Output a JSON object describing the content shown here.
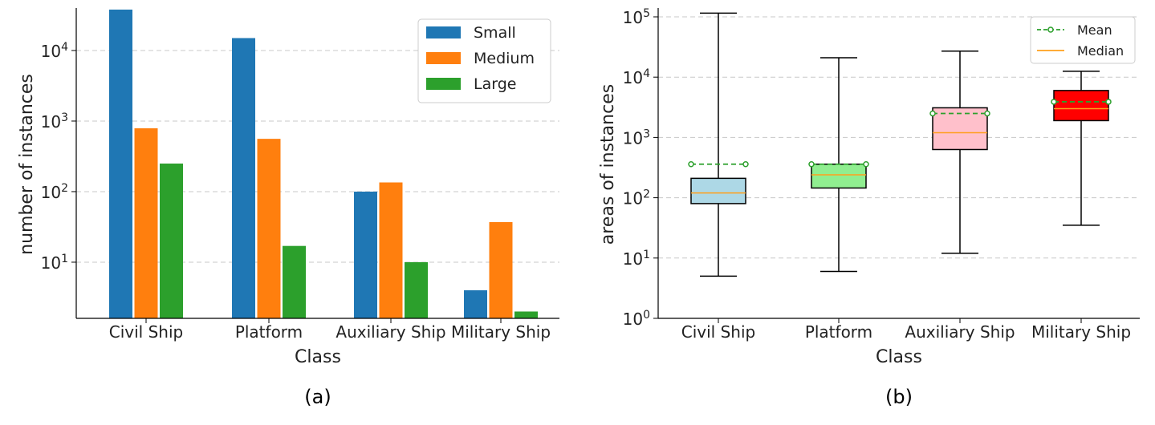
{
  "chart_data": [
    {
      "type": "bar",
      "caption": "(a)",
      "xlabel": "Class",
      "ylabel": "number of instances",
      "yscale": "log",
      "ylim": [
        1.6,
        40000
      ],
      "yticks": [
        {
          "value": 10,
          "base": "10",
          "exp": "1"
        },
        {
          "value": 100,
          "base": "10",
          "exp": "2"
        },
        {
          "value": 1000,
          "base": "10",
          "exp": "3"
        },
        {
          "value": 10000,
          "base": "10",
          "exp": "4"
        }
      ],
      "categories": [
        "Civil Ship",
        "Platform",
        "Auxiliary Ship",
        "Military Ship"
      ],
      "legend_position": "top-right",
      "series": [
        {
          "name": "Small",
          "color": "#1f77b4",
          "values": [
            38000,
            15000,
            100,
            4
          ]
        },
        {
          "name": "Medium",
          "color": "#ff7f0e",
          "values": [
            790,
            560,
            135,
            37
          ]
        },
        {
          "name": "Large",
          "color": "#2ca02c",
          "values": [
            250,
            17,
            10,
            2
          ]
        }
      ]
    },
    {
      "type": "boxplot",
      "caption": "(b)",
      "xlabel": "Class",
      "ylabel": "areas of instances",
      "yscale": "log",
      "ylim": [
        1,
        140000
      ],
      "yticks": [
        {
          "value": 1,
          "base": "10",
          "exp": "0"
        },
        {
          "value": 10,
          "base": "10",
          "exp": "1"
        },
        {
          "value": 100,
          "base": "10",
          "exp": "2"
        },
        {
          "value": 1000,
          "base": "10",
          "exp": "3"
        },
        {
          "value": 10000,
          "base": "10",
          "exp": "4"
        },
        {
          "value": 100000,
          "base": "10",
          "exp": "5"
        }
      ],
      "categories": [
        "Civil Ship",
        "Platform",
        "Auxiliary Ship",
        "Military Ship"
      ],
      "legend_position": "top-right",
      "legend": {
        "mean_label": "Mean",
        "median_label": "Median",
        "mean_color": "#2ca02c",
        "median_color": "#ff9f1c"
      },
      "boxes": [
        {
          "name": "Civil Ship",
          "min": 5,
          "q1": 80,
          "median": 120,
          "q3": 210,
          "max": 115000,
          "mean": 360,
          "color": "#add8e6"
        },
        {
          "name": "Platform",
          "min": 6,
          "q1": 145,
          "median": 240,
          "q3": 360,
          "max": 21000,
          "mean": 360,
          "color": "#90ee90"
        },
        {
          "name": "Auxiliary Ship",
          "min": 12,
          "q1": 630,
          "median": 1200,
          "q3": 3100,
          "max": 27000,
          "mean": 2500,
          "color": "#ffc0cb"
        },
        {
          "name": "Military Ship",
          "min": 35,
          "q1": 1900,
          "median": 3000,
          "q3": 6000,
          "max": 12500,
          "mean": 3900,
          "color": "#ff0000"
        }
      ]
    }
  ]
}
